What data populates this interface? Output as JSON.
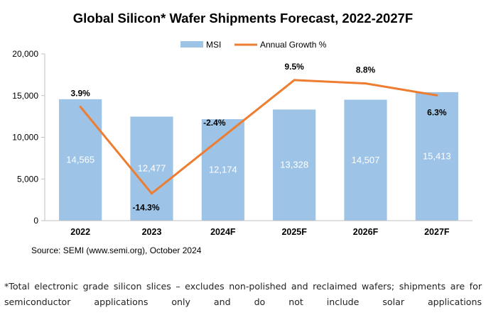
{
  "chart_data": {
    "type": "bar",
    "title": "Global Silicon* Wafer Shipments Forecast, 2022-2027F",
    "categories": [
      "2022",
      "2023",
      "2024F",
      "2025F",
      "2026F",
      "2027F"
    ],
    "series": [
      {
        "name": "MSI",
        "type": "bar",
        "values": [
          14565,
          12477,
          12174,
          13328,
          14507,
          15413
        ],
        "labels": [
          "14,565",
          "12,477",
          "12,174",
          "13,328",
          "14,507",
          "15,413"
        ],
        "color": "#9DC3E6"
      },
      {
        "name": "Annual Growth %",
        "type": "line",
        "values": [
          3.9,
          -14.3,
          -2.4,
          9.5,
          8.8,
          6.3
        ],
        "labels": [
          "3.9%",
          "-14.3%",
          "-2.4%",
          "9.5%",
          "8.8%",
          "6.3%"
        ],
        "color": "#ED7D31"
      }
    ],
    "y_ticks": [
      "0",
      "5,000",
      "10,000",
      "15,000",
      "20,000"
    ],
    "ylim": [
      0,
      20000
    ],
    "growth_ylim": [
      -20,
      15
    ],
    "legend": "top-center",
    "grid": false,
    "source": "Source: SEMI (www.semi.org), October 2024"
  },
  "footnote": "*Total electronic grade silicon slices – excludes non-polished and reclaimed wafers; shipments are for semiconductor applications only and do not include solar applications"
}
